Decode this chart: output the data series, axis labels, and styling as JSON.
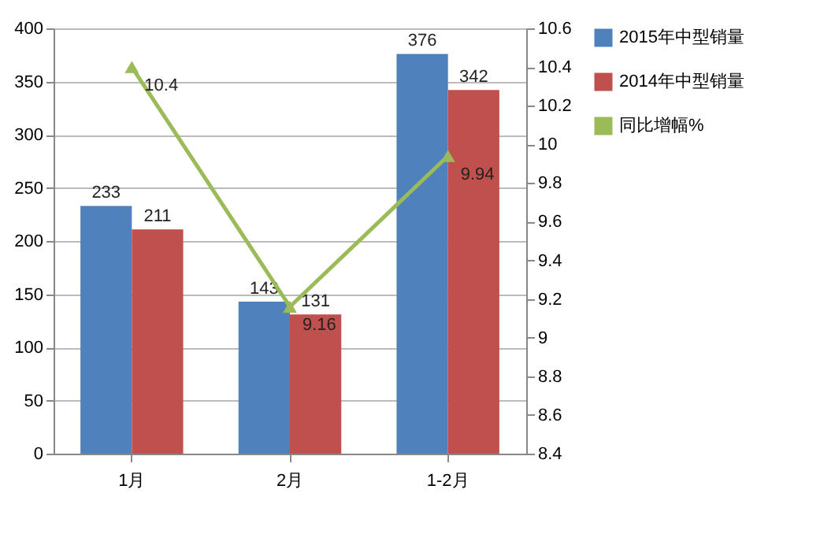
{
  "chart_data": {
    "type": "bar",
    "categories": [
      "1月",
      "2月",
      "1-2月"
    ],
    "series": [
      {
        "name": "2015年中型销量",
        "color": "#4f81bd",
        "values": [
          233,
          143,
          376
        ]
      },
      {
        "name": "2014年中型销量",
        "color": "#c0504d",
        "values": [
          211,
          131,
          342
        ]
      },
      {
        "name": "同比增幅%",
        "type": "line",
        "axis": "y2",
        "color": "#9bbb59",
        "marker": "triangle",
        "values": [
          10.4,
          9.16,
          9.94
        ]
      }
    ],
    "ylim": [
      0,
      400
    ],
    "yticks": [
      0,
      50,
      100,
      150,
      200,
      250,
      300,
      350,
      400
    ],
    "y2lim": [
      8.4,
      10.6
    ],
    "y2ticks": [
      8.4,
      8.6,
      8.8,
      9,
      9.2,
      9.4,
      9.6,
      9.8,
      10,
      10.2,
      10.4,
      10.6
    ],
    "grid": "y",
    "legend": "right",
    "data_labels": true
  }
}
